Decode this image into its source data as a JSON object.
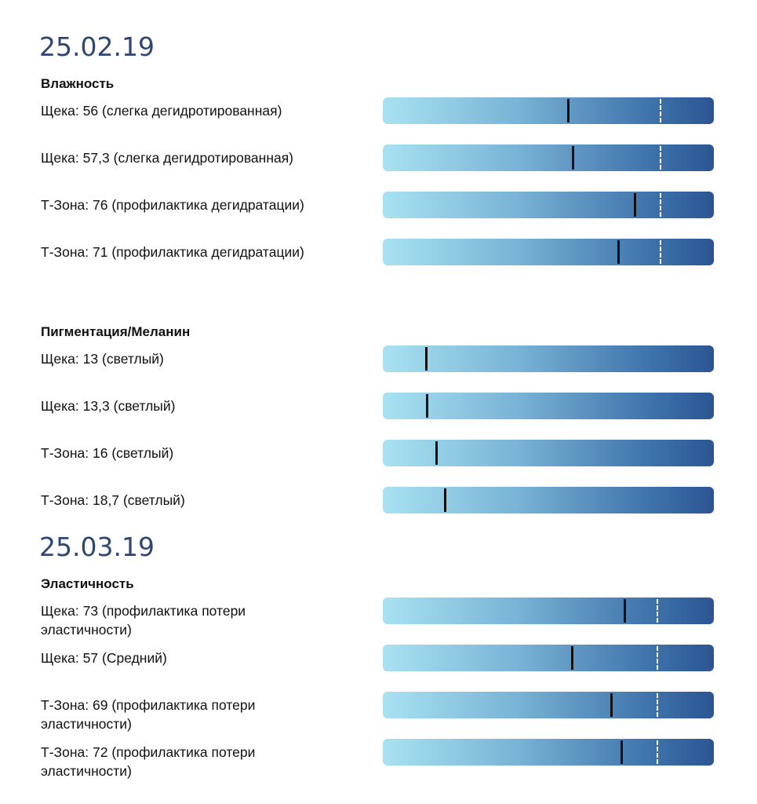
{
  "scale": [
    0,
    100
  ],
  "sections": [
    {
      "date": "25.02.19",
      "groups": [
        {
          "title": "Влажность",
          "threshold": 84,
          "items": [
            {
              "site": "Щека:",
              "value": 56,
              "note": "(слегка дегидротированная)"
            },
            {
              "site": "Щека:",
              "value": 57.3,
              "value_label": "57,3",
              "note": "(слегка дегидротированная)"
            },
            {
              "site": "Т-Зона:",
              "value": 76,
              "note": "(профилактика дегидратации)"
            },
            {
              "site": "Т-Зона:",
              "value": 71,
              "note": "(профилактика дегидратации)"
            }
          ]
        },
        {
          "title": "Пигментация/Меланин",
          "items": [
            {
              "site": "Щека:",
              "value": 13,
              "note": "(светлый)"
            },
            {
              "site": "Щека:",
              "value": 13.3,
              "value_label": "13,3",
              "note": "(светлый)"
            },
            {
              "site": "Т-Зона:",
              "value": 16,
              "note": "(светлый)"
            },
            {
              "site": "Т-Зона:",
              "value": 18.7,
              "value_label": "18,7",
              "note": "(светлый)"
            }
          ]
        }
      ]
    },
    {
      "date": "25.03.19",
      "groups": [
        {
          "title": "Эластичность",
          "threshold": 83,
          "items": [
            {
              "site": "Щека:",
              "value": 73,
              "note": "(профилактика потери эластичности)"
            },
            {
              "site": "Щека:",
              "value": 57,
              "note": "(Средний)"
            },
            {
              "site": "Т-Зона:",
              "value": 69,
              "note": "(профилактика потери эластичности)"
            },
            {
              "site": "Т-Зона:",
              "value": 72,
              "note": "(профилактика потери эластичности)"
            }
          ]
        }
      ]
    }
  ]
}
